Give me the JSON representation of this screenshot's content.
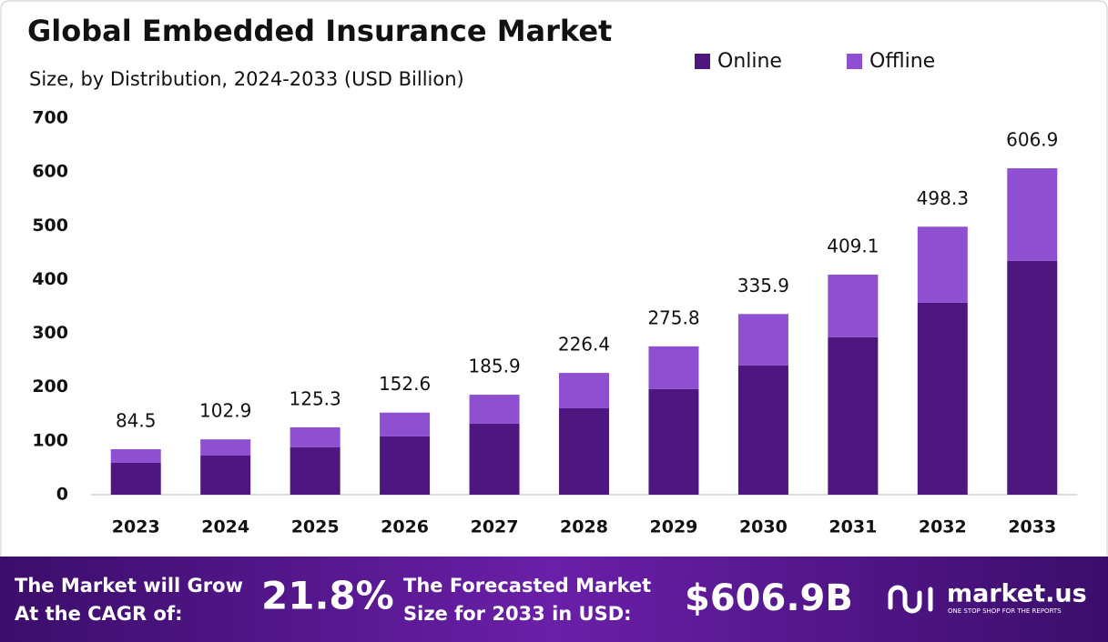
{
  "chart_data": {
    "type": "stacked-bar",
    "title": "Global Embedded Insurance Market",
    "subtitle": "Size, by Distribution, 2024-2033 (USD Billion)",
    "categories": [
      "2023",
      "2024",
      "2025",
      "2026",
      "2027",
      "2028",
      "2029",
      "2030",
      "2031",
      "2032",
      "2033"
    ],
    "series": [
      {
        "name": "Online",
        "color": "#4e1780",
        "values": [
          59.2,
          72.7,
          88.0,
          108.3,
          132.0,
          160.7,
          196.3,
          240.2,
          292.7,
          357.0,
          434.8
        ]
      },
      {
        "name": "Offline",
        "color": "#8e4fd0",
        "values": [
          25.3,
          30.2,
          37.3,
          44.3,
          53.9,
          65.7,
          79.5,
          95.7,
          116.4,
          141.3,
          172.1
        ]
      }
    ],
    "totals": [
      84.5,
      102.9,
      125.3,
      152.6,
      185.9,
      226.4,
      275.8,
      335.9,
      409.1,
      498.3,
      606.9
    ],
    "ylim": [
      0,
      700
    ],
    "yticks": [
      0,
      100,
      200,
      300,
      400,
      500,
      600,
      700
    ],
    "grid": false
  },
  "footer": {
    "cagr_text": [
      "The Market will Grow",
      "At the CAGR of:"
    ],
    "cagr": "21.8%",
    "forecast_text": [
      "The Forecasted Market",
      "Size for 2033 in USD:"
    ],
    "forecast": "$606.9B",
    "brand": "market.us",
    "tagline": "ONE STOP SHOP FOR THE REPORTS"
  }
}
